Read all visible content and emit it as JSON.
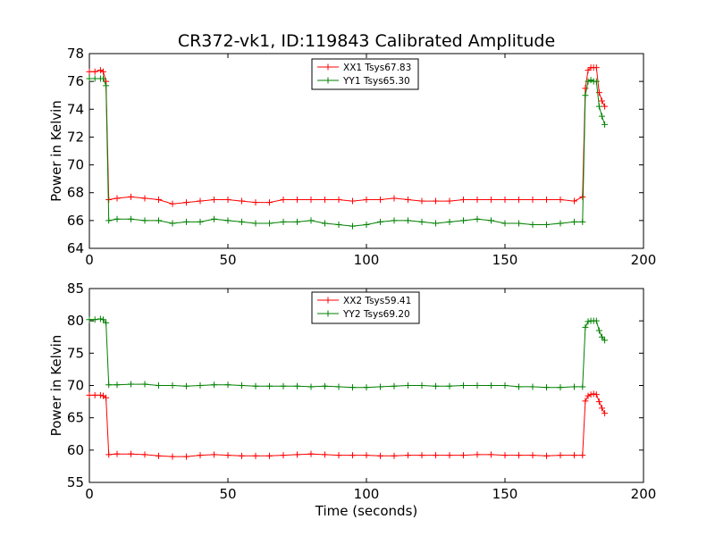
{
  "chart_data": [
    {
      "type": "line",
      "title": "CR372-vk1, ID:119843 Calibrated Amplitude",
      "xlabel": "",
      "ylabel": "Power in Kelvin",
      "xlim": [
        0,
        200
      ],
      "ylim": [
        64,
        78
      ],
      "xticks": [
        0,
        50,
        100,
        150,
        200
      ],
      "yticks": [
        64,
        66,
        68,
        70,
        72,
        74,
        76,
        78
      ],
      "grid": false,
      "legend": "top-center",
      "series": [
        {
          "name": "XX1 Tsys67.83",
          "color": "#ff0000",
          "marker": "+",
          "x": [
            0,
            2,
            4,
            5,
            6,
            7,
            10,
            15,
            20,
            25,
            30,
            35,
            40,
            45,
            50,
            55,
            60,
            65,
            70,
            75,
            80,
            85,
            90,
            95,
            100,
            105,
            110,
            115,
            120,
            125,
            130,
            135,
            140,
            145,
            150,
            155,
            160,
            165,
            170,
            175,
            178,
            179,
            180,
            181,
            182,
            183,
            184,
            185,
            186
          ],
          "y": [
            76.7,
            76.7,
            76.8,
            76.7,
            76.0,
            67.5,
            67.6,
            67.7,
            67.6,
            67.5,
            67.2,
            67.3,
            67.4,
            67.5,
            67.5,
            67.4,
            67.3,
            67.3,
            67.5,
            67.5,
            67.5,
            67.5,
            67.5,
            67.4,
            67.5,
            67.5,
            67.6,
            67.5,
            67.4,
            67.4,
            67.4,
            67.5,
            67.5,
            67.5,
            67.5,
            67.5,
            67.5,
            67.5,
            67.5,
            67.4,
            67.7,
            75.5,
            76.8,
            77.0,
            77.0,
            77.0,
            75.2,
            74.6,
            74.2
          ]
        },
        {
          "name": "YY1 Tsys65.30",
          "color": "#008000",
          "marker": "+",
          "x": [
            0,
            2,
            4,
            5,
            6,
            7,
            10,
            15,
            20,
            25,
            30,
            35,
            40,
            45,
            50,
            55,
            60,
            65,
            70,
            75,
            80,
            85,
            90,
            95,
            100,
            105,
            110,
            115,
            120,
            125,
            130,
            135,
            140,
            145,
            150,
            155,
            160,
            165,
            170,
            175,
            178,
            179,
            180,
            181,
            182,
            183,
            184,
            185,
            186
          ],
          "y": [
            76.2,
            76.2,
            76.2,
            76.2,
            75.7,
            66.0,
            66.1,
            66.1,
            66.0,
            66.0,
            65.8,
            65.9,
            65.9,
            66.1,
            66.0,
            65.9,
            65.8,
            65.8,
            65.9,
            65.9,
            66.0,
            65.8,
            65.7,
            65.6,
            65.7,
            65.9,
            66.0,
            66.0,
            65.9,
            65.8,
            65.9,
            66.0,
            66.1,
            66.0,
            65.8,
            65.8,
            65.7,
            65.7,
            65.8,
            65.9,
            65.9,
            75.0,
            76.0,
            76.1,
            76.0,
            76.0,
            74.2,
            73.5,
            72.9
          ]
        }
      ]
    },
    {
      "type": "line",
      "title": "",
      "xlabel": "Time (seconds)",
      "ylabel": "Power in Kelvin",
      "xlim": [
        0,
        200
      ],
      "ylim": [
        55,
        85
      ],
      "xticks": [
        0,
        50,
        100,
        150,
        200
      ],
      "yticks": [
        55,
        60,
        65,
        70,
        75,
        80,
        85
      ],
      "grid": false,
      "legend": "top-center",
      "series": [
        {
          "name": "XX2 Tsys59.41",
          "color": "#ff0000",
          "marker": "+",
          "x": [
            0,
            2,
            4,
            5,
            6,
            7,
            10,
            15,
            20,
            25,
            30,
            35,
            40,
            45,
            50,
            55,
            60,
            65,
            70,
            75,
            80,
            85,
            90,
            95,
            100,
            105,
            110,
            115,
            120,
            125,
            130,
            135,
            140,
            145,
            150,
            155,
            160,
            165,
            170,
            175,
            178,
            179,
            180,
            181,
            182,
            183,
            184,
            185,
            186
          ],
          "y": [
            68.5,
            68.5,
            68.5,
            68.4,
            68.1,
            59.3,
            59.4,
            59.4,
            59.3,
            59.1,
            59.0,
            59.0,
            59.2,
            59.3,
            59.2,
            59.1,
            59.1,
            59.1,
            59.2,
            59.3,
            59.4,
            59.3,
            59.2,
            59.2,
            59.2,
            59.1,
            59.1,
            59.2,
            59.2,
            59.2,
            59.2,
            59.2,
            59.3,
            59.3,
            59.2,
            59.2,
            59.2,
            59.1,
            59.2,
            59.2,
            59.2,
            67.6,
            68.4,
            68.6,
            68.7,
            68.6,
            67.5,
            66.5,
            65.7
          ]
        },
        {
          "name": "YY2 Tsys69.20",
          "color": "#008000",
          "marker": "+",
          "x": [
            0,
            2,
            4,
            5,
            6,
            7,
            10,
            15,
            20,
            25,
            30,
            35,
            40,
            45,
            50,
            55,
            60,
            65,
            70,
            75,
            80,
            85,
            90,
            95,
            100,
            105,
            110,
            115,
            120,
            125,
            130,
            135,
            140,
            145,
            150,
            155,
            160,
            165,
            170,
            175,
            178,
            179,
            180,
            181,
            182,
            183,
            184,
            185,
            186
          ],
          "y": [
            80.2,
            80.2,
            80.3,
            80.2,
            79.7,
            70.1,
            70.1,
            70.2,
            70.2,
            70.0,
            70.0,
            69.9,
            70.0,
            70.1,
            70.1,
            70.0,
            69.9,
            69.9,
            69.9,
            69.9,
            69.8,
            69.9,
            69.8,
            69.7,
            69.7,
            69.8,
            69.9,
            70.0,
            70.0,
            69.9,
            69.9,
            70.0,
            70.0,
            70.0,
            70.0,
            69.8,
            69.8,
            69.7,
            69.7,
            69.8,
            69.8,
            79.0,
            79.9,
            80.0,
            80.0,
            80.0,
            78.5,
            77.5,
            77.0
          ]
        }
      ]
    }
  ]
}
